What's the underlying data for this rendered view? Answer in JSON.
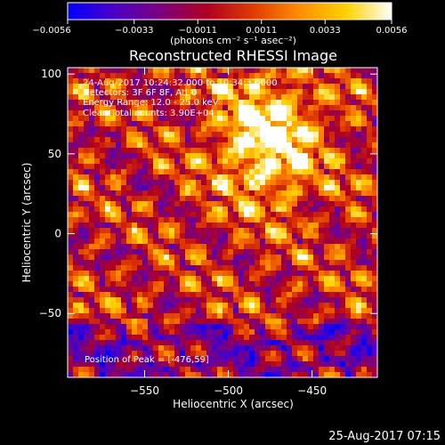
{
  "chart_data": {
    "type": "heatmap",
    "title": "Reconstructed RHESSI Image",
    "annotation_lines": [
      "24-Aug-2017 10:24:32.000 to 10:34:32.000",
      "Detectors: 3F 6F 8F, Att 0",
      "Energy Range: 12.0 - 25.0 keV",
      "Clean     Total counts: 3.90E+04"
    ],
    "peak_label": "Position of Peak = [-476,59]",
    "xlabel": "Heliocentric X (arcsec)",
    "ylabel": "Heliocentric Y (arcsec)",
    "xlim": [
      -596,
      -411
    ],
    "ylim": [
      -90,
      104
    ],
    "x_ticks": [
      -550,
      -500,
      -450
    ],
    "x_tick_labels": [
      "−550",
      "−500",
      "−450"
    ],
    "y_ticks": [
      100,
      50,
      0,
      -50
    ],
    "y_tick_labels": [
      "100",
      "50",
      "0",
      "−50"
    ],
    "colorbar": {
      "range": [
        -0.0056,
        0.0056
      ],
      "ticks": [
        -0.0056,
        -0.0033,
        -0.0011,
        0.0011,
        0.0033,
        0.0056
      ],
      "tick_labels": [
        "−0.0056",
        "−0.0033",
        "−0.0011",
        "0.0011",
        "0.0033",
        "0.0056"
      ],
      "unit": "(photons cm⁻² s⁻¹ asec⁻²)",
      "colormap": [
        "#0000ff",
        "#4a00c8",
        "#7a0080",
        "#b00020",
        "#e03a00",
        "#ff8a00",
        "#ffd200",
        "#ffffff"
      ]
    },
    "peak_position": [
      -476,
      59
    ],
    "background_color": "#000000"
  },
  "footer": {
    "timestamp": "25-Aug-2017 07:15"
  }
}
